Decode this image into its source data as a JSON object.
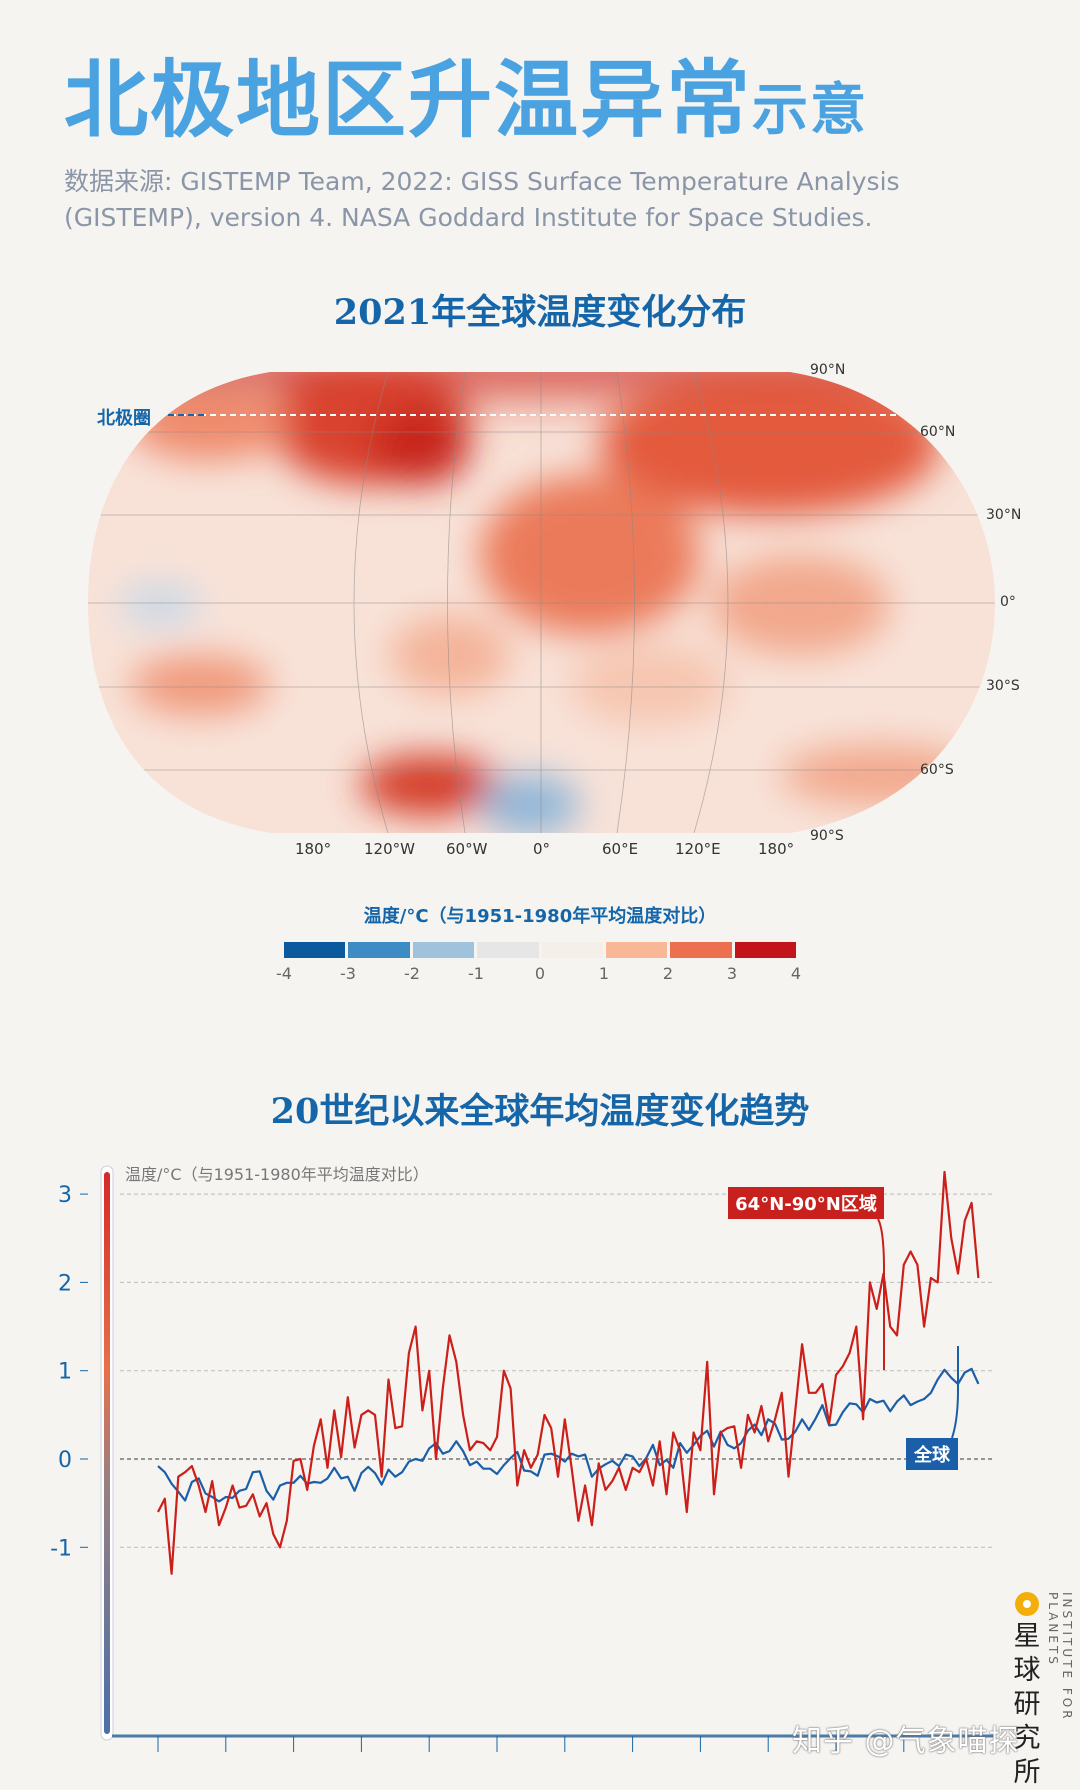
{
  "header": {
    "title_main": "北极地区升温异常",
    "title_suffix": "示意",
    "source": "数据来源: GISTEMP Team, 2022: GISS Surface Temperature Analysis (GISTEMP), version 4. NASA Goddard Institute for Space Studies."
  },
  "map": {
    "title": "2021年全球温度变化分布",
    "arctic_circle_label": "北极圈",
    "lat_labels": [
      "90°N",
      "60°N",
      "30°N",
      "0°",
      "30°S",
      "60°S",
      "90°S"
    ],
    "lon_labels": [
      "180°",
      "120°W",
      "60°W",
      "0°",
      "60°E",
      "120°E",
      "180°"
    ],
    "legend_title": "温度/°C（与1951-1980年平均温度对比）",
    "legend_ticks": [
      "-4",
      "-3",
      "-2",
      "-1",
      "0",
      "1",
      "2",
      "3",
      "4"
    ],
    "legend_colors": [
      "#0b5a9e",
      "#3e8cc4",
      "#9fc3dd",
      "#e6e6e6",
      "#f4efe9",
      "#f8b898",
      "#ec6f4f",
      "#c3141c"
    ]
  },
  "chart_data": {
    "type": "line",
    "title": "20世纪以来全球年均温度变化趋势",
    "ylabel": "温度/°C（与1951-1980年平均温度对比）",
    "ylim": [
      -2,
      3.3
    ],
    "yticks": [
      "3",
      "2",
      "1",
      "0",
      "-1"
    ],
    "xlim": [
      1896,
      2024
    ],
    "xticks": [
      "1900",
      "1910",
      "1920",
      "1930",
      "1940",
      "1950",
      "1960",
      "1970",
      "1980",
      "1990",
      "2000",
      "2010",
      "2020"
    ],
    "grid": "horizontal dashed",
    "x_start": 1900,
    "series": [
      {
        "name": "64°N-90°N区域",
        "color": "#cc1f1a",
        "values": [
          -0.6,
          -0.45,
          -1.3,
          -0.2,
          -0.15,
          -0.08,
          -0.3,
          -0.6,
          -0.25,
          -0.75,
          -0.55,
          -0.3,
          -0.55,
          -0.53,
          -0.4,
          -0.65,
          -0.5,
          -0.85,
          -1.0,
          -0.7,
          -0.02,
          0.0,
          -0.35,
          0.15,
          0.45,
          -0.1,
          0.55,
          0.02,
          0.7,
          0.13,
          0.5,
          0.55,
          0.5,
          -0.2,
          0.9,
          0.35,
          0.37,
          1.2,
          1.5,
          0.55,
          1.0,
          0.0,
          0.8,
          1.4,
          1.1,
          0.5,
          0.1,
          0.2,
          0.18,
          0.1,
          0.25,
          1.0,
          0.8,
          -0.3,
          0.1,
          -0.1,
          0.05,
          0.5,
          0.35,
          -0.2,
          0.45,
          -0.1,
          -0.7,
          -0.3,
          -0.75,
          -0.05,
          -0.35,
          -0.25,
          -0.1,
          -0.35,
          -0.1,
          -0.15,
          0.0,
          -0.3,
          0.2,
          -0.4,
          0.3,
          0.1,
          -0.6,
          0.3,
          0.1,
          1.1,
          -0.4,
          0.3,
          0.35,
          0.37,
          -0.1,
          0.5,
          0.3,
          0.6,
          0.2,
          0.45,
          0.75,
          -0.2,
          0.55,
          1.3,
          0.75,
          0.75,
          0.85,
          0.4,
          0.95,
          1.05,
          1.2,
          1.5,
          0.45,
          2.0,
          1.7,
          2.1,
          1.5,
          1.4,
          2.2,
          2.35,
          2.2,
          1.5,
          2.05,
          2.0,
          3.25,
          2.5,
          2.1,
          2.7,
          2.9,
          2.05
        ]
      },
      {
        "name": "全球",
        "color": "#1a5fa8",
        "values": [
          -0.08,
          -0.15,
          -0.28,
          -0.37,
          -0.47,
          -0.26,
          -0.22,
          -0.39,
          -0.43,
          -0.48,
          -0.43,
          -0.44,
          -0.36,
          -0.34,
          -0.15,
          -0.14,
          -0.36,
          -0.46,
          -0.3,
          -0.27,
          -0.27,
          -0.19,
          -0.28,
          -0.26,
          -0.27,
          -0.22,
          -0.1,
          -0.22,
          -0.2,
          -0.36,
          -0.16,
          -0.09,
          -0.16,
          -0.29,
          -0.12,
          -0.2,
          -0.15,
          -0.03,
          0.0,
          -0.02,
          0.12,
          0.18,
          0.06,
          0.09,
          0.2,
          0.09,
          -0.07,
          -0.03,
          -0.11,
          -0.11,
          -0.17,
          -0.07,
          0.01,
          0.08,
          -0.13,
          -0.14,
          -0.19,
          0.05,
          0.06,
          0.03,
          -0.03,
          0.06,
          0.03,
          0.05,
          -0.2,
          -0.11,
          -0.06,
          -0.02,
          -0.08,
          0.05,
          0.03,
          -0.08,
          0.01,
          0.16,
          -0.07,
          -0.01,
          -0.1,
          0.18,
          0.07,
          0.16,
          0.26,
          0.32,
          0.14,
          0.31,
          0.16,
          0.12,
          0.18,
          0.32,
          0.39,
          0.27,
          0.45,
          0.4,
          0.22,
          0.23,
          0.31,
          0.45,
          0.33,
          0.46,
          0.61,
          0.38,
          0.39,
          0.53,
          0.63,
          0.62,
          0.53,
          0.68,
          0.64,
          0.66,
          0.54,
          0.65,
          0.72,
          0.61,
          0.65,
          0.68,
          0.75,
          0.9,
          1.01,
          0.92,
          0.85,
          0.98,
          1.02,
          0.85
        ]
      }
    ]
  },
  "footer": {
    "logo_cn": "星球研究所",
    "logo_en": "INSTITUTE FOR PLANETS",
    "watermark": "知乎 @气象喵探"
  }
}
